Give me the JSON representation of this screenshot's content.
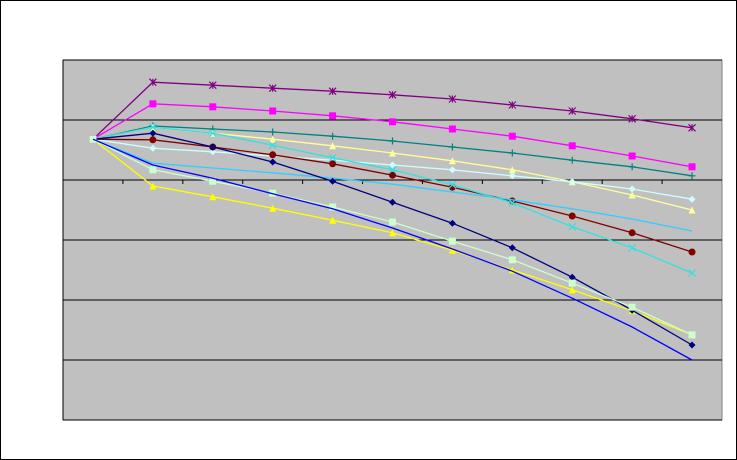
{
  "chart_data": {
    "type": "line",
    "categories": [
      null,
      null,
      null,
      null,
      null,
      null,
      null,
      null,
      null,
      null,
      null
    ],
    "ylim": [
      -4,
      2
    ],
    "yticks": [
      -4,
      -3,
      -2,
      -1,
      0,
      1,
      2
    ],
    "grid": true,
    "series": [
      {
        "color": "#800080",
        "marker": "asterisk",
        "values": [
          0.68,
          1.63,
          1.58,
          1.53,
          1.48,
          1.42,
          1.35,
          1.25,
          1.15,
          1.02,
          0.87
        ]
      },
      {
        "color": "#ff00ff",
        "marker": "square",
        "values": [
          0.68,
          1.27,
          1.22,
          1.15,
          1.07,
          0.97,
          0.85,
          0.73,
          0.57,
          0.4,
          0.22
        ]
      },
      {
        "color": "#008080",
        "marker": "plus",
        "values": [
          0.68,
          0.9,
          0.85,
          0.8,
          0.73,
          0.65,
          0.55,
          0.45,
          0.33,
          0.22,
          0.07
        ]
      },
      {
        "color": "#ffff99",
        "marker": "triangle",
        "values": [
          0.68,
          0.88,
          0.78,
          0.68,
          0.57,
          0.45,
          0.32,
          0.17,
          -0.03,
          -0.25,
          -0.5
        ]
      },
      {
        "color": "#ffff00",
        "marker": "triangle",
        "values": [
          0.68,
          -0.1,
          -0.28,
          -0.47,
          -0.67,
          -0.88,
          -1.17,
          -1.5,
          -1.83,
          -2.18,
          -2.58
        ]
      },
      {
        "color": "#ccffff",
        "marker": "diamond",
        "values": [
          0.68,
          0.53,
          0.47,
          0.4,
          0.33,
          0.25,
          0.17,
          0.07,
          -0.03,
          -0.15,
          -0.32
        ]
      },
      {
        "color": "#800000",
        "marker": "circle",
        "values": [
          0.68,
          0.67,
          0.55,
          0.42,
          0.27,
          0.08,
          -0.12,
          -0.35,
          -0.6,
          -0.88,
          -1.2
        ]
      },
      {
        "color": "#33ccff",
        "marker": "none",
        "values": [
          0.68,
          0.28,
          0.2,
          0.12,
          0.03,
          -0.07,
          -0.2,
          -0.33,
          -0.48,
          -0.65,
          -0.85
        ]
      },
      {
        "color": "#33e0e0",
        "marker": "x",
        "values": [
          0.68,
          0.88,
          0.78,
          0.58,
          0.37,
          0.17,
          -0.08,
          -0.38,
          -0.78,
          -1.13,
          -1.55
        ]
      },
      {
        "color": "#000080",
        "marker": "diamond",
        "values": [
          0.68,
          0.78,
          0.55,
          0.3,
          -0.02,
          -0.37,
          -0.72,
          -1.13,
          -1.62,
          -2.17,
          -2.75
        ]
      },
      {
        "color": "#ccffcc",
        "marker": "square",
        "values": [
          0.68,
          0.17,
          -0.02,
          -0.22,
          -0.45,
          -0.7,
          -1.02,
          -1.33,
          -1.72,
          -2.12,
          -2.58
        ]
      },
      {
        "color": "#0000ff",
        "marker": "none",
        "values": [
          0.68,
          0.25,
          0.03,
          -0.23,
          -0.48,
          -0.8,
          -1.15,
          -1.52,
          -1.97,
          -2.45,
          -3
        ]
      }
    ]
  }
}
